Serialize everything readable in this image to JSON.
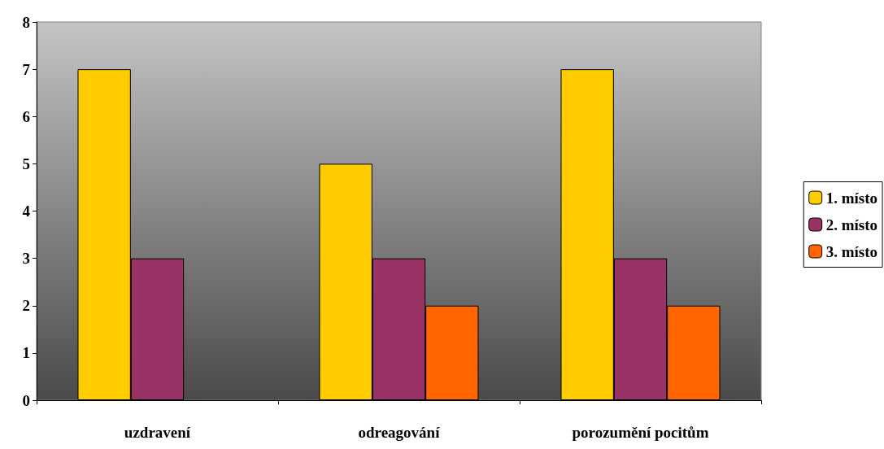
{
  "chart_data": {
    "type": "bar",
    "categories": [
      "uzdravení",
      "odreagování",
      "porozumění pocitům"
    ],
    "series": [
      {
        "name": "1. místo",
        "color": "#ffcc00",
        "values": [
          7,
          5,
          7
        ]
      },
      {
        "name": "2. místo",
        "color": "#993366",
        "values": [
          3,
          3,
          3
        ]
      },
      {
        "name": "3. místo",
        "color": "#ff6600",
        "values": [
          null,
          2,
          2
        ]
      }
    ],
    "ylim": [
      0,
      8
    ],
    "yticks": [
      0,
      1,
      2,
      3,
      4,
      5,
      6,
      7,
      8
    ],
    "grid": false,
    "legend": "right"
  }
}
